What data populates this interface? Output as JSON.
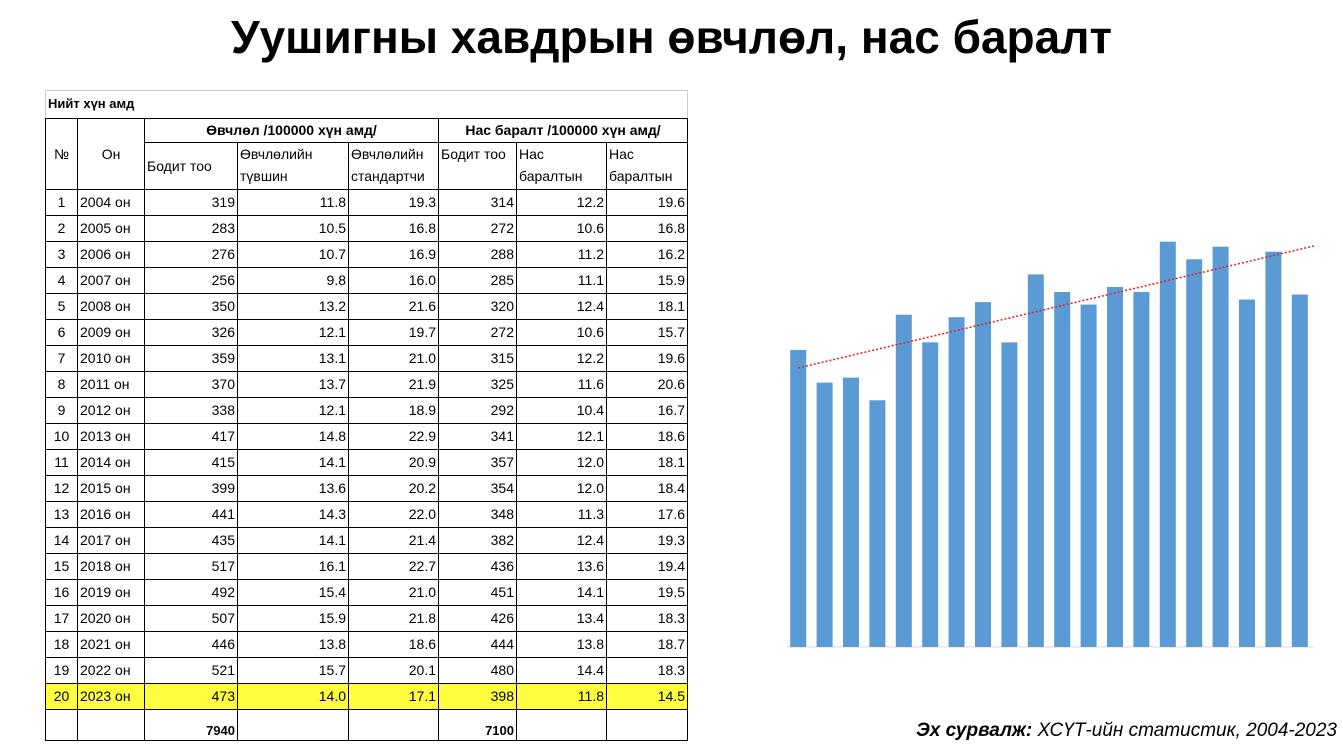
{
  "title": "Уушигны хавдрын өвчлөл, нас баралт",
  "table": {
    "caption": "Нийт хүн амд",
    "group_headers": [
      "Өвчлөл  /100000 хүн амд/",
      "Нас баралт /100000 хүн амд/"
    ],
    "headers": [
      "№",
      "Он",
      "Бодит тоо",
      "Өвчлөлийн түвшин",
      "Өвчлөлийн стандартчи",
      "Бодит тоо",
      "Нас баралтын",
      "Нас баралтын"
    ],
    "rows": [
      [
        "1",
        "2004 он",
        "319",
        "11.8",
        "19.3",
        "314",
        "12.2",
        "19.6"
      ],
      [
        "2",
        "2005 он",
        "283",
        "10.5",
        "16.8",
        "272",
        "10.6",
        "16.8"
      ],
      [
        "3",
        "2006 он",
        "276",
        "10.7",
        "16.9",
        "288",
        "11.2",
        "16.2"
      ],
      [
        "4",
        "2007 он",
        "256",
        "9.8",
        "16.0",
        "285",
        "11.1",
        "15.9"
      ],
      [
        "5",
        "2008 он",
        "350",
        "13.2",
        "21.6",
        "320",
        "12.4",
        "18.1"
      ],
      [
        "6",
        "2009 он",
        "326",
        "12.1",
        "19.7",
        "272",
        "10.6",
        "15.7"
      ],
      [
        "7",
        "2010 он",
        "359",
        "13.1",
        "21.0",
        "315",
        "12.2",
        "19.6"
      ],
      [
        "8",
        "2011 он",
        "370",
        "13.7",
        "21.9",
        "325",
        "11.6",
        "20.6"
      ],
      [
        "9",
        "2012 он",
        "338",
        "12.1",
        "18.9",
        "292",
        "10.4",
        "16.7"
      ],
      [
        "10",
        "2013 он",
        "417",
        "14.8",
        "22.9",
        "341",
        "12.1",
        "18.6"
      ],
      [
        "11",
        "2014 он",
        "415",
        "14.1",
        "20.9",
        "357",
        "12.0",
        "18.1"
      ],
      [
        "12",
        "2015 он",
        "399",
        "13.6",
        "20.2",
        "354",
        "12.0",
        "18.4"
      ],
      [
        "13",
        "2016 он",
        "441",
        "14.3",
        "22.0",
        "348",
        "11.3",
        "17.6"
      ],
      [
        "14",
        "2017 он",
        "435",
        "14.1",
        "21.4",
        "382",
        "12.4",
        "19.3"
      ],
      [
        "15",
        "2018 он",
        "517",
        "16.1",
        "22.7",
        "436",
        "13.6",
        "19.4"
      ],
      [
        "16",
        "2019 он",
        "492",
        "15.4",
        "21.0",
        "451",
        "14.1",
        "19.5"
      ],
      [
        "17",
        "2020 он",
        "507",
        "15.9",
        "21.8",
        "426",
        "13.4",
        "18.3"
      ],
      [
        "18",
        "2021 он",
        "446",
        "13.8",
        "18.6",
        "444",
        "13.8",
        "18.7"
      ],
      [
        "19",
        "2022 он",
        "521",
        "15.7",
        "20.1",
        "480",
        "14.4",
        "18.3"
      ],
      [
        "20",
        "2023 он",
        "473",
        "14.0",
        "17.1",
        "398",
        "11.8",
        "14.5"
      ]
    ],
    "totals": [
      "",
      "",
      "7940",
      "",
      "",
      "7100",
      "",
      ""
    ],
    "highlight_row": 19,
    "highlight_color": "#ffff40"
  },
  "chart_data": {
    "type": "bar",
    "values": [
      11.8,
      10.5,
      10.7,
      9.8,
      13.2,
      12.1,
      13.1,
      13.7,
      12.1,
      14.8,
      14.1,
      13.6,
      14.3,
      14.1,
      16.1,
      15.4,
      15.9,
      13.8,
      15.7,
      14.0
    ],
    "color": "#5b9bd5",
    "ylim": [
      0,
      17
    ],
    "trendline": true,
    "trendline_color": "#e02020"
  },
  "source": {
    "label": "Эх сурвалж:",
    "text": "ХСҮТ-ийн статистик, 2004-2023"
  }
}
